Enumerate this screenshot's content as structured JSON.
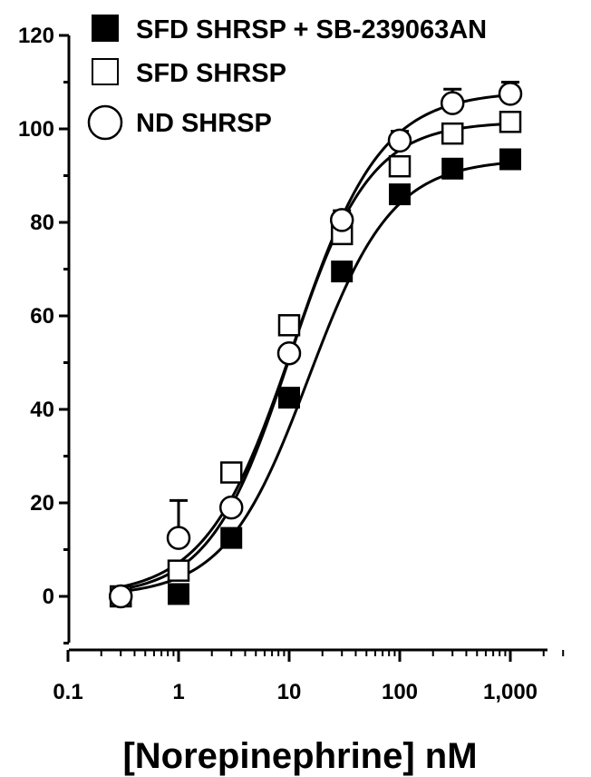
{
  "chart_data": {
    "type": "scatter",
    "title": "",
    "xlabel": "[Norepinephrine] nM",
    "ylabel": "",
    "x_scale": "log",
    "xlim": [
      0.1,
      3000
    ],
    "ylim": [
      -10,
      120
    ],
    "x_ticks": [
      0.1,
      1,
      10,
      100,
      1000
    ],
    "x_tick_labels": [
      "0.1",
      "1",
      "10",
      "100",
      "1,000"
    ],
    "y_ticks": [
      0,
      20,
      40,
      60,
      80,
      100,
      120
    ],
    "y_tick_labels": [
      "0",
      "20",
      "40",
      "60",
      "80",
      "100",
      "120"
    ],
    "legend_position": "top-right",
    "series": [
      {
        "name": "SFD SHRSP + SB-239063AN",
        "marker": "filled-square",
        "x": [
          0.3,
          1,
          3,
          10,
          30,
          100,
          300,
          1000
        ],
        "y": [
          0,
          0.5,
          12.5,
          42.5,
          69.5,
          86,
          91.5,
          93.5
        ],
        "fit": {
          "bottom": 0,
          "top": 93.5,
          "ec50": 15,
          "hill": 1.15
        }
      },
      {
        "name": "SFD SHRSP",
        "marker": "open-square",
        "x": [
          0.3,
          1,
          3,
          10,
          30,
          100,
          300,
          1000
        ],
        "y": [
          0,
          5.5,
          26.5,
          58,
          77.5,
          92,
          99,
          101.5
        ],
        "fit": {
          "bottom": 0,
          "top": 101.5,
          "ec50": 10,
          "hill": 1.2
        }
      },
      {
        "name": "ND SHRSP",
        "marker": "open-circle",
        "x": [
          0.3,
          1,
          3,
          10,
          30,
          100,
          300,
          1000
        ],
        "y": [
          0,
          12.5,
          19,
          52,
          80.5,
          97.5,
          105.5,
          107.5
        ],
        "y_err": [
          0,
          8,
          0,
          0,
          2,
          2,
          3,
          2.5
        ],
        "fit": {
          "bottom": 0,
          "top": 108,
          "ec50": 11,
          "hill": 1.1
        }
      }
    ]
  }
}
